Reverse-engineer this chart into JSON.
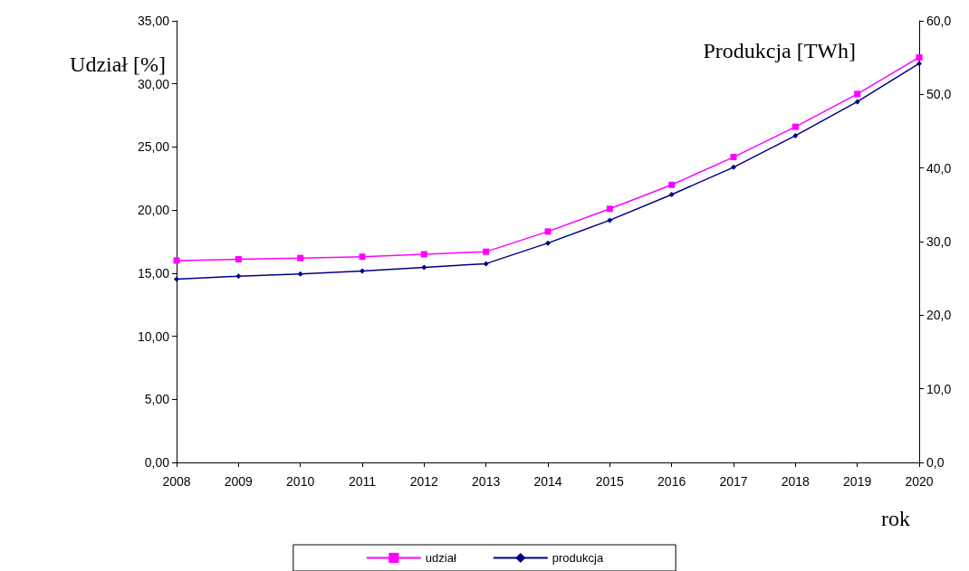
{
  "chart_data": {
    "type": "line",
    "xlabel": "rok",
    "ylabel": "Udział [%]",
    "y2label": "Produkcja [TWh]",
    "categories": [
      "2008",
      "2009",
      "2010",
      "2011",
      "2012",
      "2013",
      "2014",
      "2015",
      "2016",
      "2017",
      "2018",
      "2019",
      "2020"
    ],
    "series": [
      {
        "name": "udział",
        "color": "#ff00ff",
        "marker": "square",
        "values": [
          16.0,
          16.1,
          16.2,
          16.3,
          16.5,
          16.7,
          18.3,
          20.1,
          22.0,
          24.2,
          26.6,
          29.2,
          32.1
        ]
      },
      {
        "name": "produkcja",
        "color": "#000080",
        "marker": "diamond",
        "axis": "y2",
        "values": [
          24.9,
          25.3,
          25.6,
          26.0,
          26.5,
          27.0,
          29.8,
          32.9,
          36.4,
          40.1,
          44.4,
          49.0,
          54.2
        ]
      }
    ],
    "ylim": [
      0,
      35
    ],
    "yticks": [
      {
        "value": 0,
        "label": "0,00"
      },
      {
        "value": 5,
        "label": "5,00"
      },
      {
        "value": 10,
        "label": "10,00"
      },
      {
        "value": 15,
        "label": "15,00"
      },
      {
        "value": 20,
        "label": "20,00"
      },
      {
        "value": 25,
        "label": "25,00"
      },
      {
        "value": 30,
        "label": "30,00"
      },
      {
        "value": 35,
        "label": "35,00"
      }
    ],
    "y2lim": [
      0,
      60
    ],
    "y2ticks": [
      {
        "value": 0,
        "label": "0,0"
      },
      {
        "value": 10,
        "label": "10,0"
      },
      {
        "value": 20,
        "label": "20,0"
      },
      {
        "value": 30,
        "label": "30,0"
      },
      {
        "value": 40,
        "label": "40,0"
      },
      {
        "value": 50,
        "label": "50,0"
      },
      {
        "value": 60,
        "label": "60,0"
      }
    ],
    "grid": false,
    "legend": "bottom"
  }
}
